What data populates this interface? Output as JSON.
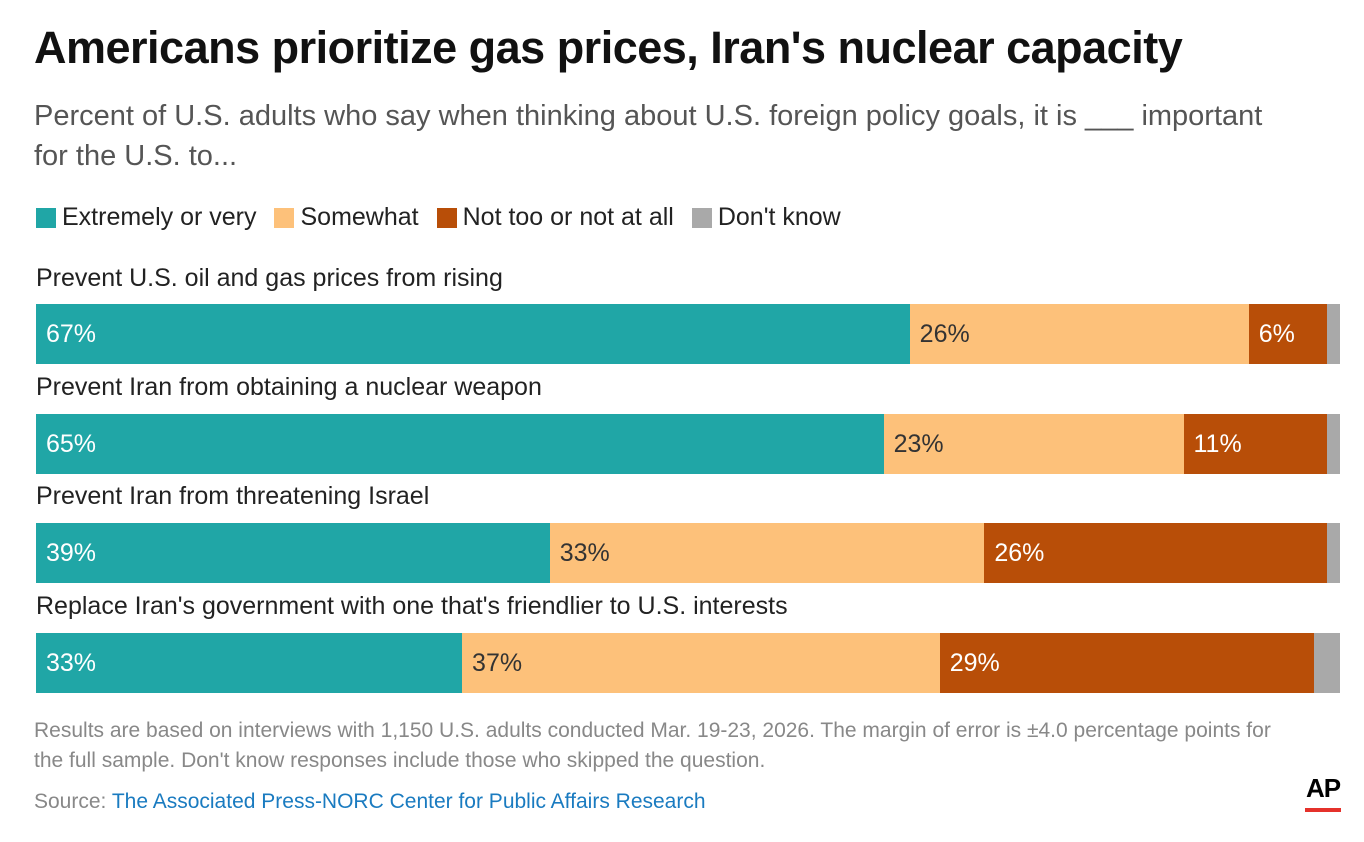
{
  "chart_data": {
    "type": "bar",
    "orientation": "horizontal-stacked",
    "title": "Americans prioritize gas prices, Iran's nuclear capacity",
    "subtitle": "Percent of U.S. adults who say when thinking about U.S. foreign policy goals, it is ___ important for the U.S. to...",
    "legend_placement": "top-left",
    "categories": [
      "Prevent U.S. oil and gas prices from rising",
      "Prevent Iran from obtaining a nuclear weapon",
      "Prevent Iran from threatening Israel",
      "Replace Iran's government with one that's friendlier to U.S. interests"
    ],
    "series": [
      {
        "name": "Extremely or very",
        "color": "#20a6a6",
        "text_color": "#ffffff",
        "values": [
          67,
          65,
          39,
          33
        ]
      },
      {
        "name": "Somewhat",
        "color": "#fdc17a",
        "text_color": "#333333",
        "values": [
          26,
          23,
          33,
          37
        ]
      },
      {
        "name": "Not too or not at all",
        "color": "#b84e08",
        "text_color": "#ffffff",
        "values": [
          6,
          11,
          26,
          29
        ]
      },
      {
        "name": "Don't know",
        "color": "#a9a9a9",
        "text_color": "#333333",
        "values": [
          1,
          1,
          1,
          2
        ],
        "labels_hidden": true
      }
    ],
    "value_suffix": "%",
    "xlim": [
      0,
      100
    ]
  },
  "note": "Results are based on interviews with 1,150 U.S. adults conducted Mar. 19-23, 2026. The margin of error is ±4.0 percentage points for the full sample. Don't know responses include those who skipped the question.",
  "source_label": "Source:",
  "source_link": "The Associated Press-NORC Center for Public Affairs Research",
  "logo": "AP"
}
